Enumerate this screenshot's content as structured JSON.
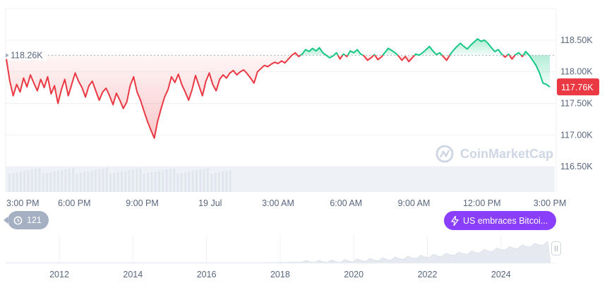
{
  "chart_data": {
    "type": "line",
    "title": "",
    "xlabel": "",
    "ylabel": "",
    "ylim": [
      116.1,
      119.0
    ],
    "reference_value": 118.26,
    "reference_label": "118.26K",
    "current_value": 117.76,
    "current_label": "117.76K",
    "y_ticks": [
      {
        "value": 118.5,
        "label": "118.50K"
      },
      {
        "value": 118.0,
        "label": "118.00K"
      },
      {
        "value": 117.5,
        "label": "117.50K"
      },
      {
        "value": 117.0,
        "label": "117.00K"
      },
      {
        "value": 116.5,
        "label": "116.50K"
      }
    ],
    "x_ticks": [
      {
        "hours": 0,
        "label": "3:00 PM"
      },
      {
        "hours": 3,
        "label": "6:00 PM"
      },
      {
        "hours": 6,
        "label": "9:00 PM"
      },
      {
        "hours": 9,
        "label": "19 Jul"
      },
      {
        "hours": 12,
        "label": "3:00 AM"
      },
      {
        "hours": 15,
        "label": "6:00 AM"
      },
      {
        "hours": 18,
        "label": "9:00 AM"
      },
      {
        "hours": 21,
        "label": "12:00 PM"
      },
      {
        "hours": 24,
        "label": "3:00 PM"
      }
    ],
    "series": [
      {
        "values": [
          118.2,
          117.85,
          117.62,
          117.8,
          117.68,
          117.9,
          117.76,
          117.95,
          117.82,
          117.7,
          117.88,
          117.75,
          117.92,
          117.65,
          117.78,
          117.5,
          117.72,
          117.88,
          117.62,
          117.8,
          117.98,
          117.85,
          117.75,
          117.6,
          117.78,
          117.85,
          117.7,
          117.55,
          117.68,
          117.74,
          117.62,
          117.48,
          117.66,
          117.55,
          117.42,
          117.52,
          117.78,
          117.92,
          117.68,
          117.55,
          117.38,
          117.22,
          117.08,
          116.95,
          117.22,
          117.42,
          117.6,
          117.72,
          117.92,
          117.83,
          117.96,
          117.8,
          117.68,
          117.55,
          117.72,
          117.94,
          117.78,
          117.62,
          117.85,
          117.98,
          117.8,
          117.7,
          117.88,
          117.95,
          117.9,
          117.98,
          118.02,
          117.95,
          118.0,
          118.03,
          117.97,
          117.9,
          117.82,
          118.0,
          118.05,
          118.1,
          118.08,
          118.12,
          118.15,
          118.13,
          118.17,
          118.14,
          118.2,
          118.26,
          118.3,
          118.24,
          118.28,
          118.35,
          118.32,
          118.37,
          118.33,
          118.38,
          118.3,
          118.26,
          118.22,
          118.25,
          118.3,
          118.2,
          118.28,
          118.24,
          118.33,
          118.3,
          118.35,
          118.28,
          118.25,
          118.18,
          118.22,
          118.27,
          118.19,
          118.23,
          118.3,
          118.37,
          118.34,
          118.3,
          118.25,
          118.18,
          118.24,
          118.16,
          118.22,
          118.28,
          118.26,
          118.3,
          118.35,
          118.4,
          118.33,
          118.27,
          118.3,
          118.24,
          118.18,
          118.27,
          118.34,
          118.4,
          118.45,
          118.4,
          118.36,
          118.42,
          118.47,
          118.52,
          118.48,
          118.5,
          118.45,
          118.38,
          118.32,
          118.35,
          118.28,
          118.23,
          118.28,
          118.2,
          118.27,
          118.3,
          118.24,
          118.32,
          118.26,
          118.18,
          118.1,
          117.98,
          117.82,
          117.8,
          117.76
        ],
        "color": "#ea3943",
        "up_color": "#16c784"
      }
    ],
    "volume_note": "",
    "watermark": "CoinMarketCap",
    "navigator_ticks": [
      "2012",
      "2014",
      "2016",
      "2018",
      "2020",
      "2022",
      "2024"
    ]
  },
  "badges": {
    "count": "121",
    "news": "US embraces Bitcoi..."
  }
}
